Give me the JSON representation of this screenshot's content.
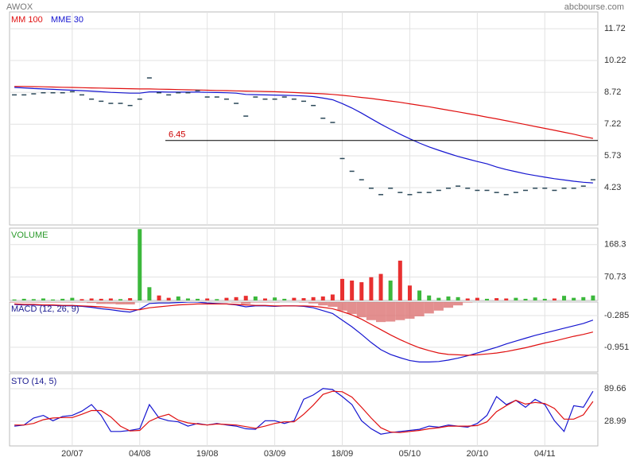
{
  "header": {
    "title": "AWOX",
    "source": "abcbourse.com"
  },
  "chart_data": [
    {
      "type": "ohlc-close",
      "color": "#2b4858",
      "values": [
        8.6,
        8.6,
        8.65,
        8.7,
        8.7,
        8.7,
        8.75,
        8.6,
        8.4,
        8.3,
        8.2,
        8.2,
        8.1,
        8.4,
        9.4,
        8.7,
        8.6,
        8.7,
        8.7,
        8.8,
        8.5,
        8.5,
        8.4,
        8.2,
        7.6,
        8.5,
        8.4,
        8.4,
        8.5,
        8.4,
        8.3,
        8.1,
        7.5,
        7.3,
        5.6,
        5.0,
        4.6,
        4.2,
        3.9,
        4.2,
        4.0,
        3.9,
        4.0,
        4.0,
        4.1,
        4.2,
        4.3,
        4.2,
        4.1,
        4.1,
        4.0,
        3.9,
        4.0,
        4.1,
        4.2,
        4.2,
        4.1,
        4.2,
        4.2,
        4.3,
        4.6
      ],
      "series": [
        {
          "name": "MM 100",
          "color": "#e01010",
          "values": [
            9.0,
            9.0,
            8.99,
            8.98,
            8.97,
            8.96,
            8.95,
            8.94,
            8.93,
            8.92,
            8.91,
            8.9,
            8.89,
            8.88,
            8.88,
            8.87,
            8.86,
            8.85,
            8.84,
            8.83,
            8.82,
            8.81,
            8.8,
            8.79,
            8.78,
            8.77,
            8.76,
            8.75,
            8.73,
            8.71,
            8.69,
            8.67,
            8.65,
            8.62,
            8.58,
            8.53,
            8.48,
            8.43,
            8.37,
            8.31,
            8.25,
            8.18,
            8.11,
            8.04,
            7.96,
            7.88,
            7.8,
            7.72,
            7.64,
            7.55,
            7.47,
            7.38,
            7.29,
            7.2,
            7.11,
            7.02,
            6.93,
            6.84,
            6.75,
            6.64,
            6.55
          ]
        },
        {
          "name": "MME 30",
          "color": "#1515d0",
          "values": [
            8.95,
            8.93,
            8.9,
            8.88,
            8.86,
            8.84,
            8.82,
            8.8,
            8.78,
            8.75,
            8.72,
            8.7,
            8.68,
            8.68,
            8.74,
            8.74,
            8.73,
            8.73,
            8.73,
            8.73,
            8.72,
            8.71,
            8.7,
            8.68,
            8.62,
            8.61,
            8.6,
            8.59,
            8.58,
            8.57,
            8.55,
            8.52,
            8.45,
            8.37,
            8.19,
            7.98,
            7.74,
            7.48,
            7.22,
            6.98,
            6.75,
            6.53,
            6.33,
            6.15,
            5.99,
            5.84,
            5.7,
            5.58,
            5.46,
            5.35,
            5.2,
            5.08,
            4.98,
            4.88,
            4.8,
            4.72,
            4.65,
            4.59,
            4.53,
            4.48,
            4.45
          ]
        }
      ],
      "hline": 6.45,
      "hline_color": "#cc0000",
      "ylim": [
        2.47,
        12.51
      ],
      "yticks": [
        4.23,
        5.73,
        7.22,
        8.72,
        10.22,
        11.72
      ],
      "grid": true
    },
    {
      "type": "volume",
      "title": "VOLUME",
      "up_color": "#3cb83c",
      "down_color": "#e83030",
      "values": [
        3,
        5,
        4,
        6,
        3,
        5,
        8,
        4,
        6,
        5,
        6,
        4,
        7,
        215,
        40,
        15,
        8,
        12,
        6,
        5,
        6,
        4,
        8,
        10,
        14,
        12,
        6,
        9,
        5,
        8,
        7,
        10,
        12,
        18,
        65,
        60,
        55,
        70,
        80,
        60,
        120,
        45,
        30,
        15,
        8,
        12,
        10,
        6,
        8,
        5,
        7,
        6,
        8,
        5,
        9,
        5,
        6,
        14,
        8,
        10,
        15
      ],
      "ylim": [
        0,
        218
      ],
      "yticks": [
        70.73,
        168.3
      ],
      "grid": true
    },
    {
      "type": "macd",
      "title": "MACD (12, 26, 9)",
      "series": [
        {
          "color": "#1515d0",
          "values": [
            -0.05,
            -0.06,
            -0.06,
            -0.07,
            -0.07,
            -0.08,
            -0.08,
            -0.09,
            -0.11,
            -0.14,
            -0.16,
            -0.19,
            -0.21,
            -0.15,
            -0.03,
            -0.02,
            -0.02,
            -0.01,
            0,
            0,
            -0.02,
            -0.03,
            -0.04,
            -0.06,
            -0.1,
            -0.08,
            -0.08,
            -0.09,
            -0.08,
            -0.08,
            -0.09,
            -0.12,
            -0.18,
            -0.24,
            -0.38,
            -0.52,
            -0.68,
            -0.85,
            -1.0,
            -1.1,
            -1.17,
            -1.23,
            -1.26,
            -1.26,
            -1.25,
            -1.22,
            -1.18,
            -1.13,
            -1.07,
            -1.01,
            -0.95,
            -0.88,
            -0.82,
            -0.76,
            -0.7,
            -0.65,
            -0.6,
            -0.55,
            -0.5,
            -0.45,
            -0.38
          ]
        },
        {
          "color": "#e01010",
          "values": [
            -0.04,
            -0.05,
            -0.05,
            -0.06,
            -0.06,
            -0.07,
            -0.07,
            -0.08,
            -0.09,
            -0.1,
            -0.12,
            -0.14,
            -0.16,
            -0.16,
            -0.12,
            -0.1,
            -0.08,
            -0.06,
            -0.05,
            -0.04,
            -0.04,
            -0.04,
            -0.04,
            -0.05,
            -0.06,
            -0.07,
            -0.07,
            -0.08,
            -0.08,
            -0.08,
            -0.08,
            -0.09,
            -0.11,
            -0.14,
            -0.2,
            -0.27,
            -0.36,
            -0.47,
            -0.58,
            -0.69,
            -0.79,
            -0.88,
            -0.96,
            -1.02,
            -1.07,
            -1.1,
            -1.11,
            -1.12,
            -1.11,
            -1.09,
            -1.07,
            -1.04,
            -1.0,
            -0.96,
            -0.91,
            -0.86,
            -0.82,
            -0.77,
            -0.72,
            -0.68,
            -0.63
          ]
        }
      ],
      "histogram": {
        "color": "#d96a6a",
        "values": [
          -0.01,
          -0.01,
          -0.01,
          -0.01,
          -0.01,
          -0.01,
          -0.01,
          -0.01,
          -0.02,
          -0.04,
          -0.04,
          -0.05,
          -0.05,
          0.01,
          0.09,
          0.08,
          0.06,
          0.05,
          0.05,
          0.04,
          0.02,
          0.01,
          0,
          -0.01,
          -0.04,
          -0.01,
          -0.01,
          -0.01,
          0,
          0,
          -0.01,
          -0.03,
          -0.07,
          -0.1,
          -0.18,
          -0.25,
          -0.32,
          -0.38,
          -0.42,
          -0.41,
          -0.38,
          -0.35,
          -0.3,
          -0.24,
          -0.18,
          -0.12,
          -0.07,
          -0.01,
          0.04,
          0.08,
          0.12,
          0.16,
          0.18,
          0.2,
          0.21,
          0.21,
          0.22,
          0.22,
          0.22,
          0.23,
          0.25
        ]
      },
      "ylim": [
        -1.47,
        0
      ],
      "yticks": [
        -0.951,
        -0.285
      ],
      "grid": true
    },
    {
      "type": "stochastic",
      "title": "STO (14, 5)",
      "categories": [
        null,
        null,
        null,
        null,
        null,
        null,
        "20/07",
        null,
        null,
        null,
        null,
        null,
        null,
        "04/08",
        null,
        null,
        null,
        null,
        null,
        null,
        "19/08",
        null,
        null,
        null,
        null,
        null,
        null,
        "03/09",
        null,
        null,
        null,
        null,
        null,
        null,
        "18/09",
        null,
        null,
        null,
        null,
        null,
        null,
        "05/10",
        null,
        null,
        null,
        null,
        null,
        null,
        "20/10",
        null,
        null,
        null,
        null,
        null,
        null,
        "04/11",
        null,
        null,
        null,
        null,
        null
      ],
      "series": [
        {
          "color": "#1515d0",
          "values": [
            20,
            22,
            35,
            40,
            30,
            38,
            40,
            48,
            60,
            40,
            10,
            10,
            12,
            15,
            60,
            35,
            30,
            28,
            20,
            25,
            22,
            25,
            22,
            20,
            15,
            14,
            30,
            30,
            25,
            30,
            70,
            78,
            90,
            88,
            75,
            60,
            30,
            15,
            5,
            8,
            10,
            12,
            14,
            20,
            18,
            22,
            20,
            18,
            25,
            40,
            75,
            60,
            68,
            55,
            70,
            60,
            30,
            10,
            58,
            55,
            85
          ]
        },
        {
          "color": "#e01010",
          "values": [
            22,
            22,
            25,
            32,
            35,
            36,
            36,
            42,
            49,
            49,
            37,
            20,
            11,
            12,
            29,
            37,
            42,
            31,
            26,
            24,
            22,
            24,
            23,
            22,
            19,
            16,
            20,
            25,
            28,
            28,
            42,
            59,
            79,
            85,
            84,
            74,
            55,
            35,
            17,
            9,
            8,
            10,
            12,
            15,
            17,
            20,
            20,
            20,
            21,
            28,
            47,
            58,
            68,
            61,
            64,
            62,
            53,
            33,
            33,
            41,
            66
          ]
        }
      ],
      "ylim": [
        -16.9,
        117.8
      ],
      "yticks": [
        28.99,
        89.66
      ],
      "grid": true
    }
  ]
}
